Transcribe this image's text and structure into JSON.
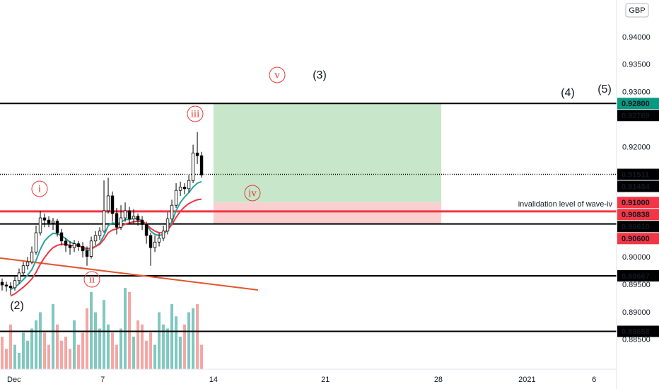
{
  "chart_data": {
    "type": "candlestick",
    "currency": "GBP",
    "xlim": [
      -0.5,
      144.8
    ],
    "ylim": [
      0.8797,
      0.9468
    ],
    "xticks": [
      {
        "value": 2.8,
        "label": "Dec"
      },
      {
        "value": 23.7,
        "label": "7"
      },
      {
        "value": 49.8,
        "label": "14"
      },
      {
        "value": 76.2,
        "label": "21"
      },
      {
        "value": 102.8,
        "label": "28"
      },
      {
        "value": 123.7,
        "label": "2021"
      },
      {
        "value": 139.5,
        "label": "6"
      }
    ],
    "yticks": [
      {
        "value": 0.94,
        "label": "0.94000"
      },
      {
        "value": 0.935,
        "label": "0.93500"
      },
      {
        "value": 0.93,
        "label": "0.93000"
      },
      {
        "value": 0.92,
        "label": "0.92000"
      },
      {
        "value": 0.9,
        "label": "0.90000"
      },
      {
        "value": 0.895,
        "label": "0.89500"
      },
      {
        "value": 0.89,
        "label": "0.89000"
      },
      {
        "value": 0.885,
        "label": "0.88500"
      }
    ],
    "grid": false,
    "up_color": "#ffffff",
    "down_color": "#000000",
    "wick_color": "#000000",
    "volume_up_color": "#80c8bf",
    "volume_down_color": "#f4a6a4",
    "open": [
      0.8955,
      0.895,
      0.8948,
      0.8945,
      0.8958,
      0.8972,
      0.8985,
      0.8992,
      0.901,
      0.9045,
      0.9072,
      0.9068,
      0.9063,
      0.9066,
      0.9045,
      0.903,
      0.9022,
      0.9018,
      0.9025,
      0.902,
      0.9012,
      0.9002,
      0.903,
      0.904,
      0.9048,
      0.9085,
      0.9112,
      0.908,
      0.9055,
      0.9072,
      0.9085,
      0.907,
      0.9075,
      0.9068,
      0.906,
      0.904,
      0.9018,
      0.9028,
      0.9035,
      0.9048,
      0.907,
      0.9095,
      0.9122,
      0.9128,
      0.9125,
      0.914,
      0.919,
      0.9185
    ],
    "high": [
      0.8962,
      0.8956,
      0.8955,
      0.8965,
      0.898,
      0.8992,
      0.9001,
      0.902,
      0.9058,
      0.9085,
      0.908,
      0.9075,
      0.9072,
      0.907,
      0.9052,
      0.9036,
      0.903,
      0.9032,
      0.903,
      0.9028,
      0.902,
      0.9038,
      0.9048,
      0.9055,
      0.914,
      0.9145,
      0.912,
      0.909,
      0.9095,
      0.91,
      0.9092,
      0.9088,
      0.908,
      0.9075,
      0.9065,
      0.9045,
      0.904,
      0.9045,
      0.9058,
      0.9082,
      0.9105,
      0.9135,
      0.9138,
      0.9135,
      0.915,
      0.9205,
      0.9228,
      0.9192
    ],
    "low": [
      0.894,
      0.8938,
      0.8932,
      0.894,
      0.8952,
      0.8966,
      0.8978,
      0.8988,
      0.9005,
      0.904,
      0.9055,
      0.9055,
      0.905,
      0.9038,
      0.9022,
      0.901,
      0.9005,
      0.901,
      0.9012,
      0.9,
      0.8985,
      0.8998,
      0.9022,
      0.9032,
      0.9045,
      0.908,
      0.9065,
      0.9042,
      0.905,
      0.9065,
      0.906,
      0.9062,
      0.9058,
      0.905,
      0.9025,
      0.8985,
      0.901,
      0.902,
      0.903,
      0.9042,
      0.9065,
      0.909,
      0.9112,
      0.9115,
      0.9118,
      0.9135,
      0.917,
      0.9145
    ],
    "close": [
      0.895,
      0.8948,
      0.8945,
      0.8958,
      0.8972,
      0.8985,
      0.8992,
      0.901,
      0.9045,
      0.9072,
      0.9068,
      0.9063,
      0.9066,
      0.9045,
      0.903,
      0.9022,
      0.9018,
      0.9025,
      0.902,
      0.9012,
      0.9002,
      0.903,
      0.904,
      0.9048,
      0.9085,
      0.9112,
      0.908,
      0.9055,
      0.9072,
      0.9085,
      0.907,
      0.9075,
      0.9068,
      0.906,
      0.904,
      0.9018,
      0.9028,
      0.9035,
      0.9048,
      0.907,
      0.9095,
      0.9122,
      0.9128,
      0.9125,
      0.914,
      0.919,
      0.9185,
      0.915
    ],
    "volume": [
      40,
      25,
      55,
      30,
      20,
      45,
      35,
      50,
      60,
      70,
      45,
      30,
      80,
      55,
      35,
      40,
      25,
      60,
      30,
      45,
      75,
      95,
      70,
      50,
      85,
      55,
      45,
      30,
      50,
      100,
      95,
      40,
      60,
      55,
      35,
      45,
      30,
      70,
      55,
      50,
      80,
      65,
      40,
      55,
      70,
      75,
      80,
      30
    ],
    "ma": [
      {
        "color": "#26a69a",
        "values": [
          null,
          null,
          0.8942,
          0.8946,
          0.8952,
          0.896,
          0.8968,
          0.8978,
          0.8995,
          0.9015,
          0.903,
          0.9038,
          0.9044,
          0.9043,
          0.904,
          0.9034,
          0.9028,
          0.9025,
          0.9022,
          0.9018,
          0.9012,
          0.9015,
          0.902,
          0.9026,
          0.904,
          0.9058,
          0.9063,
          0.9061,
          0.9064,
          0.9069,
          0.9069,
          0.9071,
          0.907,
          0.9067,
          0.906,
          0.9048,
          0.9042,
          0.904,
          0.9042,
          0.905,
          0.9065,
          0.9085,
          0.91,
          0.911,
          0.9118,
          0.9128,
          0.9135,
          0.9138
        ]
      },
      {
        "color": "#f23645",
        "values": [
          null,
          null,
          0.893,
          0.8934,
          0.894,
          0.8946,
          0.8953,
          0.8961,
          0.8973,
          0.8988,
          0.9,
          0.901,
          0.9018,
          0.9022,
          0.9024,
          0.9024,
          0.9022,
          0.9022,
          0.9021,
          0.9019,
          0.9016,
          0.9017,
          0.902,
          0.9024,
          0.9033,
          0.9045,
          0.905,
          0.9052,
          0.9056,
          0.9061,
          0.9063,
          0.9065,
          0.9066,
          0.9065,
          0.9061,
          0.9053,
          0.9048,
          0.9045,
          0.9045,
          0.905,
          0.906,
          0.9073,
          0.9084,
          0.9092,
          0.9098,
          0.9102,
          0.9105,
          0.9106
        ]
      }
    ],
    "trendline": {
      "x": [
        -0.5,
        60.3
      ],
      "y": [
        0.8999,
        0.8941
      ],
      "color": "#e2552d"
    },
    "position": {
      "x": [
        49.8,
        103.5
      ],
      "entry": 0.91,
      "target": 0.928,
      "stop": 0.906,
      "profit_color": "#c8e6c9",
      "loss_color": "#fbcfd0"
    },
    "levels": [
      {
        "value": 0.928,
        "label": "0.92800",
        "style": "solid",
        "color": "#000000",
        "label_bg": "#089981"
      },
      {
        "value": 0.92769,
        "label": "0.92769",
        "style": "none",
        "color": "#000000",
        "label_bg": "#000000"
      },
      {
        "value": 0.91511,
        "label": "0.91511",
        "style": "dotted",
        "color": "#000000",
        "label_bg": "#000000"
      },
      {
        "value": 0.91484,
        "label": "0.91484",
        "style": "none",
        "color": "#000000",
        "label_bg": "#000000"
      },
      {
        "value": 0.91,
        "label": "0.91000",
        "style": "none",
        "color": "#f23645",
        "label_bg": "#f23645"
      },
      {
        "value": 0.90838,
        "label": "0.90838",
        "style": "thick",
        "color": "#f23645",
        "label_bg": "#f23645"
      },
      {
        "value": 0.9061,
        "label": "0.90610",
        "style": "solid",
        "color": "#000000",
        "label_bg": "#000000"
      },
      {
        "value": 0.906,
        "label": "0.90600",
        "style": "none",
        "color": "#f23645",
        "label_bg": "#f23645"
      },
      {
        "value": 0.89667,
        "label": "0.89667",
        "style": "solid",
        "color": "#000000",
        "label_bg": "#000000"
      },
      {
        "value": 0.88658,
        "label": "0.88658",
        "style": "solid",
        "color": "#000000",
        "label_bg": "#000000"
      }
    ],
    "note": "invalidation level of wave-iv",
    "wave_labels": [
      "i",
      "ii",
      "iii",
      "iv",
      "v"
    ],
    "degree_labels": [
      "(2)",
      "(3)",
      "(4)",
      "(5)"
    ]
  }
}
